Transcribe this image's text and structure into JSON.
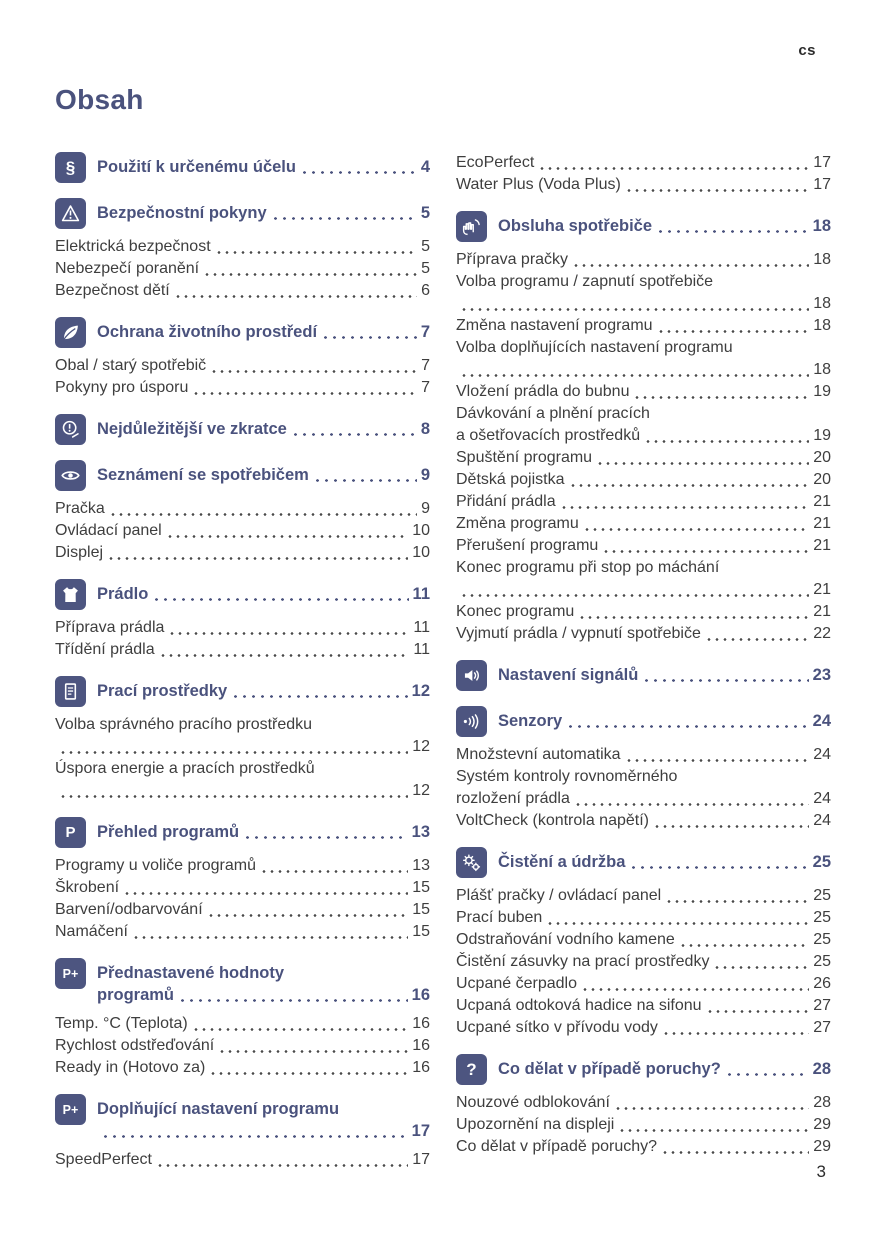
{
  "meta": {
    "lang_badge": "cs",
    "title": "Obsah",
    "page_number": "3"
  },
  "colors": {
    "accent": "#4a527d",
    "icon_bg": "#4d5580",
    "body_text": "#3e3e3e"
  },
  "icon_glyphs": {
    "section-paragraph-icon": "§",
    "program-dial-icon": "P",
    "preset-plus-icon": "P+",
    "program-settings-plus-icon": "P+",
    "question-mark-icon": "?"
  },
  "toc": {
    "left": [
      {
        "kind": "section",
        "id": "intended-use",
        "icon": "section-paragraph-icon",
        "title": "Použití k určenému účelu",
        "page": "4"
      },
      {
        "kind": "section",
        "id": "safety",
        "icon": "warning-triangle-icon",
        "title": "Bezpečnostní pokyny",
        "page": "5"
      },
      {
        "kind": "entry",
        "label": "Elektrická bezpečnost",
        "page": "5"
      },
      {
        "kind": "entry",
        "label": "Nebezpečí poranění",
        "page": "5"
      },
      {
        "kind": "entry",
        "label": "Bezpečnost dětí",
        "page": "6"
      },
      {
        "kind": "section",
        "id": "environment",
        "icon": "leaf-icon",
        "title": "Ochrana životního prostředí",
        "page": "7"
      },
      {
        "kind": "entry",
        "label": "Obal / starý spotřebič",
        "page": "7"
      },
      {
        "kind": "entry",
        "label": "Pokyny pro úsporu",
        "page": "7"
      },
      {
        "kind": "section",
        "id": "in-brief",
        "icon": "exclamation-circle-icon",
        "title": "Nejdůležitější ve zkratce",
        "page": "8"
      },
      {
        "kind": "section",
        "id": "overview",
        "icon": "eye-icon",
        "title": "Seznámení se spotřebičem",
        "page": "9"
      },
      {
        "kind": "entry",
        "label": "Pračka",
        "page": "9"
      },
      {
        "kind": "entry",
        "label": "Ovládací panel",
        "page": "10"
      },
      {
        "kind": "entry",
        "label": "Displej",
        "page": "10"
      },
      {
        "kind": "section",
        "id": "laundry",
        "icon": "tshirt-icon",
        "title": "Prádlo",
        "page": "11"
      },
      {
        "kind": "entry",
        "label": "Příprava prádla",
        "page": "11"
      },
      {
        "kind": "entry",
        "label": "Třídění prádla",
        "page": "11"
      },
      {
        "kind": "section",
        "id": "detergents",
        "icon": "detergent-box-icon",
        "title": "Prací prostředky",
        "page": "12"
      },
      {
        "kind": "entry",
        "label": "Volba správného pracího prostředku",
        "page": "12",
        "wrapPage": true
      },
      {
        "kind": "entry",
        "label": "Úspora energie a pracích prostředků",
        "page": "12",
        "wrapPage": true
      },
      {
        "kind": "section",
        "id": "programme-overview",
        "icon": "program-dial-icon",
        "title": "Přehled programů",
        "page": "13"
      },
      {
        "kind": "entry",
        "label": "Programy u voliče programů",
        "page": "13"
      },
      {
        "kind": "entry",
        "label": "Škrobení",
        "page": "15"
      },
      {
        "kind": "entry",
        "label": "Barvení/odbarvování",
        "page": "15"
      },
      {
        "kind": "entry",
        "label": "Namáčení",
        "page": "15"
      },
      {
        "kind": "section",
        "id": "preset-values",
        "icon": "preset-plus-icon",
        "title_lines": [
          "Přednastavené hodnoty",
          "programů"
        ],
        "page": "16"
      },
      {
        "kind": "entry",
        "label": "Temp. °C (Teplota)",
        "page": "16"
      },
      {
        "kind": "entry",
        "label": "Rychlost odstřeďování",
        "page": "16"
      },
      {
        "kind": "entry",
        "label": "Ready in (Hotovo za)",
        "page": "16"
      },
      {
        "kind": "section",
        "id": "additional-settings",
        "icon": "program-settings-plus-icon",
        "title": "Doplňující nastavení programu",
        "page": "17",
        "wrapPage": true
      },
      {
        "kind": "entry",
        "label": "SpeedPerfect",
        "page": "17"
      }
    ],
    "right": [
      {
        "kind": "entry",
        "label": "EcoPerfect",
        "page": "17"
      },
      {
        "kind": "entry",
        "label": "Water Plus (Voda Plus)",
        "page": "17"
      },
      {
        "kind": "section",
        "id": "operation",
        "icon": "hand-operation-icon",
        "title": "Obsluha spotřebiče",
        "page": "18"
      },
      {
        "kind": "entry",
        "label": "Příprava pračky",
        "page": "18"
      },
      {
        "kind": "entry",
        "label": "Volba programu / zapnutí spotřebiče",
        "page": "18",
        "wrapPage": true
      },
      {
        "kind": "entry",
        "label": "Změna nastavení programu",
        "page": "18"
      },
      {
        "kind": "entry",
        "label": "Volba doplňujících nastavení programu",
        "page": "18",
        "wrapPage": true
      },
      {
        "kind": "entry",
        "label": "Vložení prádla do bubnu",
        "page": "19"
      },
      {
        "kind": "entry",
        "label": "Dávkování a plnění pracích",
        "label2": "a ošetřovacích prostředků",
        "page": "19"
      },
      {
        "kind": "entry",
        "label": "Spuštění programu",
        "page": "20"
      },
      {
        "kind": "entry",
        "label": "Dětská pojistka",
        "page": "20"
      },
      {
        "kind": "entry",
        "label": "Přidání prádla",
        "page": "21"
      },
      {
        "kind": "entry",
        "label": "Změna programu",
        "page": "21"
      },
      {
        "kind": "entry",
        "label": "Přerušení programu",
        "page": "21"
      },
      {
        "kind": "entry",
        "label": "Konec programu při stop po máchání",
        "page": "21",
        "wrapPage": true
      },
      {
        "kind": "entry",
        "label": "Konec programu",
        "page": "21"
      },
      {
        "kind": "entry",
        "label": "Vyjmutí prádla / vypnutí spotřebiče",
        "page": "22"
      },
      {
        "kind": "section",
        "id": "signal-settings",
        "icon": "speaker-icon",
        "title": "Nastavení signálů",
        "page": "23"
      },
      {
        "kind": "section",
        "id": "sensors",
        "icon": "sensor-waves-icon",
        "title": "Senzory",
        "page": "24"
      },
      {
        "kind": "entry",
        "label": "Množstevní automatika",
        "page": "24"
      },
      {
        "kind": "entry",
        "label": "Systém kontroly rovnoměrného",
        "label2": "rozložení prádla",
        "page": "24"
      },
      {
        "kind": "entry",
        "label": "VoltCheck (kontrola napětí)",
        "page": "24"
      },
      {
        "kind": "section",
        "id": "cleaning-maintenance",
        "icon": "gears-icon",
        "title": "Čistění a údržba",
        "page": "25"
      },
      {
        "kind": "entry",
        "label": "Plášť pračky / ovládací panel",
        "page": "25"
      },
      {
        "kind": "entry",
        "label": "Prací buben",
        "page": "25"
      },
      {
        "kind": "entry",
        "label": "Odstraňování vodního kamene",
        "page": "25"
      },
      {
        "kind": "entry",
        "label": "Čistění zásuvky na prací prostředky",
        "page": "25"
      },
      {
        "kind": "entry",
        "label": "Ucpané čerpadlo",
        "page": "26"
      },
      {
        "kind": "entry",
        "label": "Ucpaná odtoková hadice na sifonu",
        "page": "27"
      },
      {
        "kind": "entry",
        "label": "Ucpané sítko v přívodu vody",
        "page": "27"
      },
      {
        "kind": "section",
        "id": "troubleshooting",
        "icon": "question-mark-icon",
        "title": "Co dělat v případě poruchy?",
        "page": "28"
      },
      {
        "kind": "entry",
        "label": "Nouzové odblokování",
        "page": "28"
      },
      {
        "kind": "entry",
        "label": "Upozornění na displeji",
        "page": "29"
      },
      {
        "kind": "entry",
        "label": "Co dělat v případě poruchy?",
        "page": "29"
      }
    ]
  }
}
